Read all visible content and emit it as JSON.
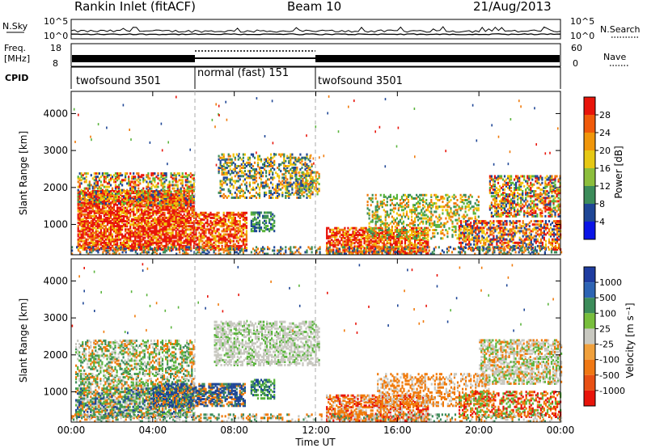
{
  "header": {
    "title": "Rankin Inlet (fitACF)",
    "beam": "Beam 10",
    "date": "21/Aug/2013"
  },
  "labels": {
    "n_sky": "N.Sky",
    "n_search": "N.Search",
    "freq_line1": "Freq.",
    "freq_line2": "[MHz]",
    "nave": "Nave",
    "cpid": "CPID",
    "x_label": "Time UT"
  },
  "colors": {
    "red": "#e8140a",
    "orange": "#f07a0a",
    "yellow": "#f0c40a",
    "green": "#5ab43c",
    "dark_green": "#3c8c5a",
    "blue": "#1e4696",
    "gray": "#c8c8c0",
    "bright_blue": "#0a14e6"
  },
  "chart_data": [
    {
      "type": "line",
      "name": "noise",
      "y_ticks_left": [
        "10^5",
        "10^0"
      ],
      "y_ticks_right": [
        "10^5",
        "10^0"
      ],
      "left_label": "N.Sky",
      "right_label": "N.Search"
    },
    {
      "type": "line",
      "name": "frequency",
      "y_ticks_left": [
        "18",
        "8"
      ],
      "y_ticks_right": [
        "60",
        "0"
      ],
      "left_label": "Freq. [MHz]",
      "right_label": "Nave"
    },
    {
      "type": "table",
      "name": "cpid",
      "segments": [
        {
          "label": "twofsound 3501",
          "start": 0,
          "end": 6
        },
        {
          "label": "normal (fast) 151",
          "start": 6,
          "end": 12
        },
        {
          "label": "twofsound 3501",
          "start": 12,
          "end": 24
        }
      ]
    },
    {
      "type": "heatmap",
      "name": "power",
      "ylabel": "Slant Range [km]",
      "xlabel": "Time UT",
      "xlim": [
        0,
        24
      ],
      "ylim": [
        180,
        4600
      ],
      "y_ticks": [
        1000,
        2000,
        3000,
        4000
      ],
      "x_ticks": [
        "00:00",
        "04:00",
        "08:00",
        "12:00",
        "16:00",
        "20:00",
        "00:00"
      ],
      "colorbar_label": "Power [dB]",
      "colorbar_ticks": [
        "28",
        "24",
        "20",
        "16",
        "12",
        "8",
        "4"
      ],
      "colorbar_colors": [
        "#e8140a",
        "#f05a0a",
        "#f0960a",
        "#e6c814",
        "#8cbe3c",
        "#3c8c5a",
        "#1e4696",
        "#0a14e6"
      ]
    },
    {
      "type": "heatmap",
      "name": "velocity",
      "ylabel": "Slant Range [km]",
      "xlabel": "Time UT",
      "xlim": [
        0,
        24
      ],
      "ylim": [
        180,
        4600
      ],
      "y_ticks": [
        1000,
        2000,
        3000,
        4000
      ],
      "x_ticks": [
        "00:00",
        "04:00",
        "08:00",
        "12:00",
        "16:00",
        "20:00",
        "00:00"
      ],
      "colorbar_label": "Velocity [m s⁻¹]",
      "colorbar_ticks": [
        "1000",
        "500",
        "100",
        "25",
        "-25",
        "-100",
        "-500",
        "-1000"
      ],
      "colorbar_colors": [
        "#1e3ca0",
        "#2d64b4",
        "#3c8c5a",
        "#78be3c",
        "#c8c8c0",
        "#f0a03c",
        "#f07814",
        "#e85014",
        "#e8140a"
      ]
    }
  ]
}
